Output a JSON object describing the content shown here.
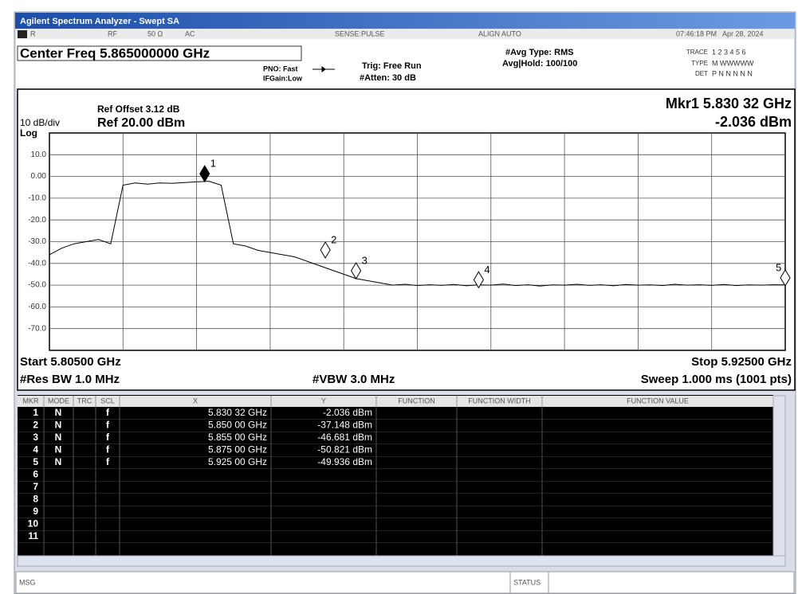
{
  "window": {
    "title": "Agilent Spectrum Analyzer - Swept SA"
  },
  "status_bar": {
    "input": "R",
    "rf": "RF",
    "impedance": "50 Ω",
    "coupling": "AC",
    "sense": "SENSE:PULSE",
    "align": "ALIGN AUTO",
    "time": "07:46:18 PM",
    "date": "Apr 28, 2024"
  },
  "settings": {
    "center_freq": "Center Freq 5.865000000 GHz",
    "pno": "PNO: Fast",
    "ifgain": "IFGain:Low",
    "trig": "Trig: Free Run",
    "atten": "#Atten: 30 dB",
    "avg_type": "#Avg Type: RMS",
    "avg_hold": "Avg|Hold: 100/100",
    "trace_label": "TRACE",
    "trace_digits": "1 2 3 4 5 6",
    "type_label": "TYPE",
    "type_value": "M WWWWW",
    "det_label": "DET",
    "det_value": "P N N N N N"
  },
  "chart_data": {
    "type": "line",
    "ref_offset": "Ref Offset 3.12 dB",
    "scale": "10 dB/div",
    "ref_level": "Ref 20.00 dBm",
    "scale_type": "Log",
    "marker_readout_freq": "Mkr1 5.830 32 GHz",
    "marker_readout_amp": "-2.036 dBm",
    "start": "Start 5.80500 GHz",
    "stop": "Stop 5.92500 GHz",
    "rbw": "#Res BW 1.0 MHz",
    "vbw": "#VBW 3.0 MHz",
    "sweep": "Sweep  1.000 ms (1001 pts)",
    "color": "#000000",
    "xlim": [
      5.805,
      5.925
    ],
    "ylim": [
      -80,
      20
    ],
    "yticks": [
      {
        "value": 10,
        "label": "10.0"
      },
      {
        "value": 0,
        "label": "0.00"
      },
      {
        "value": -10,
        "label": "-10.0"
      },
      {
        "value": -20,
        "label": "-20.0"
      },
      {
        "value": -30,
        "label": "-30.0"
      },
      {
        "value": -40,
        "label": "-40.0"
      },
      {
        "value": -50,
        "label": "-50.0"
      },
      {
        "value": -60,
        "label": "-60.0"
      },
      {
        "value": -70,
        "label": "-70.0"
      }
    ],
    "grid": true,
    "x": [
      5.805,
      5.807,
      5.809,
      5.811,
      5.813,
      5.815,
      5.817,
      5.819,
      5.821,
      5.823,
      5.825,
      5.827,
      5.829,
      5.831,
      5.833,
      5.835,
      5.837,
      5.839,
      5.841,
      5.843,
      5.845,
      5.847,
      5.849,
      5.851,
      5.853,
      5.855,
      5.857,
      5.859,
      5.861,
      5.863,
      5.865,
      5.867,
      5.869,
      5.871,
      5.873,
      5.875,
      5.877,
      5.879,
      5.881,
      5.883,
      5.885,
      5.887,
      5.889,
      5.891,
      5.893,
      5.895,
      5.897,
      5.899,
      5.901,
      5.903,
      5.905,
      5.907,
      5.909,
      5.911,
      5.913,
      5.915,
      5.917,
      5.919,
      5.921,
      5.923,
      5.925
    ],
    "values": [
      -36,
      -33,
      -31,
      -30,
      -29,
      -31,
      -4,
      -3,
      -3.5,
      -3,
      -3.2,
      -2.8,
      -2.5,
      -2.2,
      -4,
      -31,
      -32,
      -34,
      -35,
      -36,
      -37,
      -39,
      -41,
      -43,
      -45,
      -47,
      -48,
      -49,
      -50,
      -49.6,
      -50.2,
      -49.8,
      -50.1,
      -49.7,
      -50.3,
      -49.9,
      -50,
      -49.5,
      -50.2,
      -49.8,
      -50.4,
      -49.9,
      -50,
      -49.6,
      -50.1,
      -49.8,
      -50.3,
      -49.7,
      -50,
      -49.9,
      -50.2,
      -49.6,
      -50,
      -49.8,
      -50.1,
      -49.7,
      -50.2,
      -49.9,
      -50,
      -49.8,
      -49.9
    ],
    "markers": [
      {
        "label": "1",
        "x": 5.83032,
        "y": -2.036
      },
      {
        "label": "2",
        "x": 5.85,
        "y": -37.148
      },
      {
        "label": "3",
        "x": 5.855,
        "y": -46.681
      },
      {
        "label": "4",
        "x": 5.875,
        "y": -50.821
      },
      {
        "label": "5",
        "x": 5.925,
        "y": -49.936
      }
    ]
  },
  "table": {
    "header": [
      "MKR",
      "MODE",
      "TRC",
      "SCL",
      "X",
      "Y",
      "FUNCTION",
      "FUNCTION WIDTH",
      "FUNCTION VALUE"
    ],
    "rows": [
      {
        "mkr": "1",
        "mode": "N",
        "scl": "f",
        "x": "5.830 32 GHz",
        "y": "-2.036 dBm"
      },
      {
        "mkr": "2",
        "mode": "N",
        "scl": "f",
        "x": "5.850 00 GHz",
        "y": "-37.148 dBm"
      },
      {
        "mkr": "3",
        "mode": "N",
        "scl": "f",
        "x": "5.855 00 GHz",
        "y": "-46.681 dBm"
      },
      {
        "mkr": "4",
        "mode": "N",
        "scl": "f",
        "x": "5.875 00 GHz",
        "y": "-50.821 dBm"
      },
      {
        "mkr": "5",
        "mode": "N",
        "scl": "f",
        "x": "5.925 00 GHz",
        "y": "-49.936 dBm"
      },
      {
        "mkr": "6"
      },
      {
        "mkr": "7"
      },
      {
        "mkr": "8"
      },
      {
        "mkr": "9"
      },
      {
        "mkr": "10"
      },
      {
        "mkr": "11"
      }
    ]
  },
  "footer": {
    "msg": "MSG",
    "status": "STATUS"
  }
}
